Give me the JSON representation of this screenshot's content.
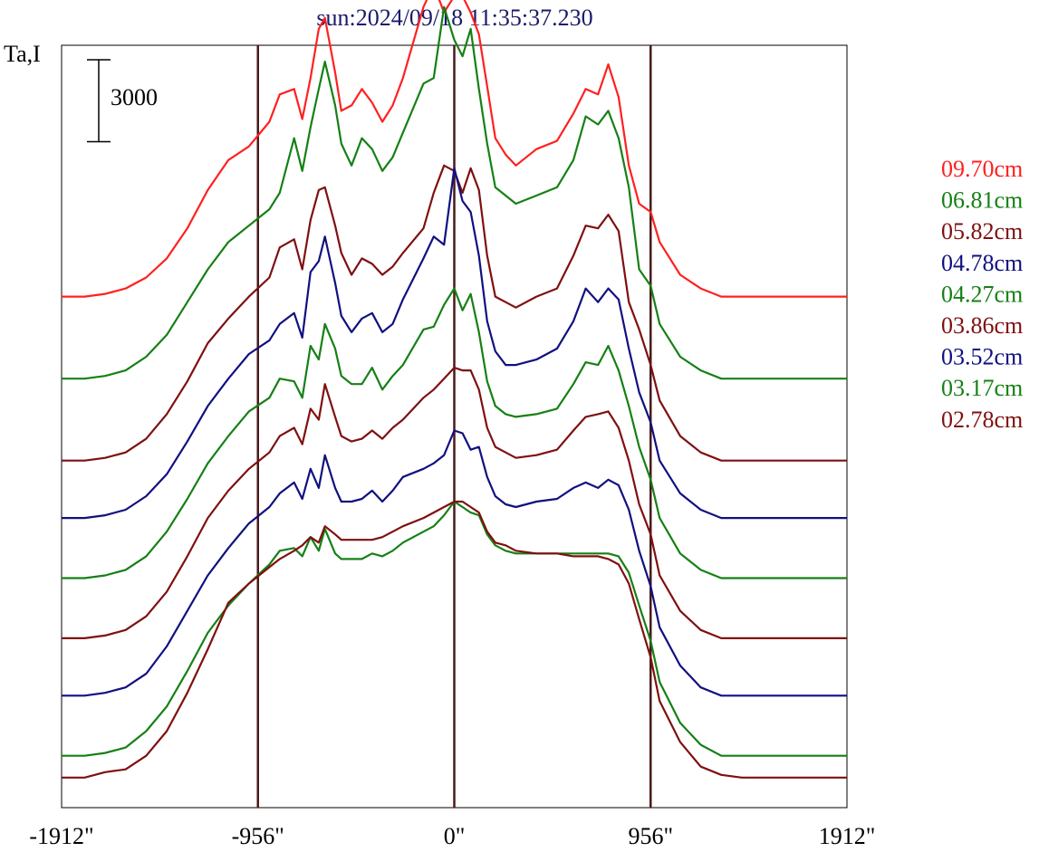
{
  "chart_data": {
    "type": "line",
    "title": "sun:2024/09/18 11:35:37.230",
    "ylabel": "Ta,I",
    "scale_bar_label": "3000",
    "scale_bar_value": 3000,
    "x_ticks": [
      {
        "value": -1912,
        "label": "-1912\""
      },
      {
        "value": -956,
        "label": "-956\""
      },
      {
        "value": 0,
        "label": "0\""
      },
      {
        "value": 956,
        "label": "956\""
      },
      {
        "value": 1912,
        "label": "1912\""
      }
    ],
    "xlim": [
      -1912,
      1912
    ],
    "ylim": [
      -1100,
      26800
    ],
    "reference_lines_x": [
      -956,
      0,
      956
    ],
    "grid": false,
    "legend_position": "right",
    "legend": [
      {
        "label": "09.70cm",
        "color": "#ff2020"
      },
      {
        "label": "06.81cm",
        "color": "#158015"
      },
      {
        "label": "05.82cm",
        "color": "#7f1010"
      },
      {
        "label": "04.78cm",
        "color": "#101080"
      },
      {
        "label": "04.27cm",
        "color": "#158015"
      },
      {
        "label": "03.86cm",
        "color": "#7f1010"
      },
      {
        "label": "03.52cm",
        "color": "#101080"
      },
      {
        "label": "03.17cm",
        "color": "#158015"
      },
      {
        "label": "02.78cm",
        "color": "#7f1010"
      }
    ],
    "series": [
      {
        "color": "#ff2020",
        "offset": 17600,
        "x": [
          -1912,
          -1800,
          -1700,
          -1600,
          -1500,
          -1400,
          -1300,
          -1200,
          -1100,
          -1000,
          -900,
          -850,
          -780,
          -740,
          -700,
          -660,
          -630,
          -580,
          -550,
          -500,
          -450,
          -400,
          -350,
          -300,
          -250,
          -150,
          -100,
          -50,
          0,
          40,
          80,
          120,
          160,
          200,
          250,
          300,
          400,
          500,
          580,
          640,
          700,
          750,
          800,
          850,
          900,
          956,
          1000,
          1100,
          1200,
          1300,
          1400,
          1500,
          1600,
          1700,
          1800,
          1912
        ],
        "y": [
          0,
          0,
          100,
          300,
          700,
          1400,
          2500,
          3900,
          5000,
          5500,
          6400,
          7400,
          7600,
          6500,
          8000,
          9800,
          10200,
          8200,
          6800,
          7000,
          7600,
          7100,
          6400,
          7000,
          8000,
          10600,
          11400,
          10400,
          11000,
          11000,
          10400,
          9600,
          7700,
          5800,
          5200,
          4800,
          5400,
          5700,
          6700,
          7600,
          7400,
          8500,
          7300,
          4800,
          3400,
          3100,
          2000,
          800,
          300,
          0,
          0,
          0,
          0,
          0,
          0,
          0
        ]
      },
      {
        "color": "#158015",
        "offset": 14600,
        "x": [
          -1912,
          -1800,
          -1700,
          -1600,
          -1500,
          -1400,
          -1300,
          -1200,
          -1100,
          -1000,
          -900,
          -850,
          -780,
          -740,
          -700,
          -660,
          -630,
          -580,
          -550,
          -500,
          -450,
          -400,
          -350,
          -300,
          -250,
          -150,
          -100,
          -50,
          0,
          40,
          80,
          120,
          160,
          200,
          250,
          300,
          400,
          500,
          580,
          640,
          700,
          750,
          800,
          850,
          900,
          956,
          1000,
          1100,
          1200,
          1300,
          1400,
          1500,
          1600,
          1700,
          1800,
          1912
        ],
        "y": [
          0,
          0,
          100,
          300,
          800,
          1600,
          2800,
          4000,
          5000,
          5600,
          6200,
          6800,
          8800,
          7600,
          9200,
          10600,
          11600,
          10000,
          8600,
          7800,
          8800,
          8400,
          7600,
          8100,
          9000,
          10800,
          11000,
          13600,
          12400,
          11800,
          12800,
          10600,
          8600,
          7000,
          6700,
          6400,
          6700,
          7000,
          8000,
          9600,
          9300,
          9800,
          8800,
          7000,
          4000,
          3400,
          2000,
          800,
          300,
          0,
          0,
          0,
          0,
          0,
          0,
          0
        ]
      },
      {
        "color": "#7f1010",
        "offset": 11600,
        "x": [
          -1912,
          -1800,
          -1700,
          -1600,
          -1500,
          -1400,
          -1300,
          -1200,
          -1100,
          -1000,
          -900,
          -850,
          -780,
          -740,
          -700,
          -660,
          -630,
          -580,
          -550,
          -500,
          -450,
          -400,
          -350,
          -300,
          -250,
          -150,
          -100,
          -50,
          0,
          40,
          80,
          120,
          160,
          200,
          250,
          300,
          400,
          500,
          580,
          640,
          700,
          750,
          800,
          850,
          900,
          956,
          1000,
          1100,
          1200,
          1300,
          1400,
          1500,
          1600,
          1700,
          1800,
          1912
        ],
        "y": [
          0,
          0,
          100,
          300,
          800,
          1700,
          2900,
          4300,
          5200,
          6000,
          6700,
          7800,
          8100,
          7000,
          8800,
          9900,
          10000,
          8600,
          7600,
          6800,
          7400,
          7200,
          6800,
          7100,
          7600,
          8500,
          9800,
          10800,
          10600,
          9800,
          10700,
          9900,
          7500,
          6000,
          5800,
          5600,
          6000,
          6300,
          7500,
          8600,
          8500,
          9000,
          8400,
          5800,
          4800,
          3500,
          2200,
          900,
          300,
          0,
          0,
          0,
          0,
          0,
          0,
          0
        ]
      },
      {
        "color": "#101080",
        "offset": 9500,
        "x": [
          -1912,
          -1800,
          -1700,
          -1600,
          -1500,
          -1400,
          -1300,
          -1200,
          -1100,
          -1000,
          -900,
          -850,
          -780,
          -740,
          -700,
          -660,
          -630,
          -580,
          -550,
          -500,
          -450,
          -400,
          -350,
          -300,
          -250,
          -150,
          -100,
          -50,
          0,
          40,
          80,
          120,
          160,
          200,
          250,
          300,
          400,
          500,
          580,
          640,
          700,
          750,
          800,
          850,
          900,
          956,
          1000,
          1100,
          1200,
          1300,
          1400,
          1500,
          1600,
          1700,
          1800,
          1912
        ],
        "y": [
          0,
          0,
          100,
          300,
          800,
          1600,
          2800,
          4100,
          5100,
          6000,
          6500,
          7100,
          7500,
          6600,
          9000,
          9400,
          10300,
          8600,
          7400,
          6800,
          7300,
          7500,
          6800,
          7100,
          8000,
          9500,
          10300,
          10000,
          12800,
          11600,
          11200,
          9600,
          7200,
          6100,
          5600,
          5600,
          5800,
          6200,
          7200,
          8400,
          7900,
          8400,
          8000,
          6200,
          4600,
          3500,
          2100,
          900,
          300,
          0,
          0,
          0,
          0,
          0,
          0,
          0
        ]
      },
      {
        "color": "#158015",
        "offset": 7300,
        "x": [
          -1912,
          -1800,
          -1700,
          -1600,
          -1500,
          -1400,
          -1300,
          -1200,
          -1100,
          -1000,
          -900,
          -850,
          -780,
          -740,
          -700,
          -660,
          -630,
          -580,
          -550,
          -500,
          -450,
          -400,
          -350,
          -300,
          -250,
          -150,
          -100,
          -50,
          0,
          40,
          80,
          120,
          160,
          200,
          250,
          300,
          400,
          500,
          580,
          640,
          700,
          750,
          800,
          850,
          900,
          956,
          1000,
          1100,
          1200,
          1300,
          1400,
          1500,
          1600,
          1700,
          1800,
          1912
        ],
        "y": [
          0,
          0,
          100,
          300,
          800,
          1700,
          2900,
          4200,
          5200,
          6100,
          6600,
          7300,
          7200,
          6600,
          8500,
          8000,
          9300,
          8400,
          7400,
          7100,
          7100,
          7700,
          6900,
          7400,
          7800,
          9100,
          9200,
          10000,
          10600,
          9800,
          10400,
          9000,
          7200,
          6300,
          6000,
          5900,
          6000,
          6200,
          7100,
          7900,
          7800,
          8500,
          7600,
          6300,
          4800,
          3600,
          2200,
          900,
          300,
          0,
          0,
          0,
          0,
          0,
          0,
          0
        ]
      },
      {
        "color": "#7f1010",
        "offset": 5100,
        "x": [
          -1912,
          -1800,
          -1700,
          -1600,
          -1500,
          -1400,
          -1300,
          -1200,
          -1100,
          -1000,
          -900,
          -850,
          -780,
          -740,
          -700,
          -660,
          -630,
          -580,
          -550,
          -500,
          -450,
          -400,
          -350,
          -300,
          -250,
          -150,
          -100,
          -50,
          0,
          40,
          80,
          120,
          160,
          200,
          250,
          300,
          400,
          500,
          580,
          640,
          700,
          750,
          800,
          850,
          900,
          956,
          1000,
          1100,
          1200,
          1300,
          1400,
          1500,
          1600,
          1700,
          1800,
          1912
        ],
        "y": [
          0,
          0,
          100,
          300,
          800,
          1700,
          3000,
          4400,
          5400,
          6200,
          6800,
          7400,
          7700,
          7100,
          8400,
          8000,
          9300,
          8100,
          7400,
          7200,
          7300,
          7600,
          7300,
          7700,
          8000,
          8800,
          9100,
          9500,
          9900,
          9800,
          9800,
          9100,
          7700,
          7000,
          6800,
          6600,
          6700,
          6900,
          7600,
          8100,
          8200,
          8300,
          7700,
          6500,
          4900,
          3800,
          2300,
          1000,
          300,
          0,
          0,
          0,
          0,
          0,
          0,
          0
        ]
      },
      {
        "color": "#101080",
        "offset": 3000,
        "x": [
          -1912,
          -1800,
          -1700,
          -1600,
          -1500,
          -1400,
          -1300,
          -1200,
          -1100,
          -1000,
          -900,
          -850,
          -780,
          -740,
          -700,
          -660,
          -630,
          -580,
          -550,
          -500,
          -450,
          -400,
          -350,
          -300,
          -250,
          -150,
          -100,
          -50,
          0,
          40,
          80,
          120,
          160,
          200,
          250,
          300,
          400,
          500,
          580,
          640,
          700,
          750,
          800,
          850,
          900,
          956,
          1000,
          1100,
          1200,
          1300,
          1400,
          1500,
          1600,
          1700,
          1800,
          1912
        ],
        "y": [
          0,
          0,
          100,
          300,
          800,
          1800,
          3100,
          4400,
          5400,
          6300,
          6900,
          7400,
          7800,
          7200,
          8300,
          7600,
          8800,
          7600,
          7100,
          7100,
          7200,
          7500,
          7100,
          7500,
          8000,
          8300,
          8500,
          8800,
          9700,
          9600,
          9000,
          9100,
          8000,
          7300,
          7000,
          6900,
          7100,
          7200,
          7600,
          7800,
          7600,
          7900,
          7700,
          6800,
          5300,
          4000,
          2500,
          1100,
          300,
          0,
          0,
          0,
          0,
          0,
          0,
          0
        ]
      },
      {
        "color": "#158015",
        "offset": 800,
        "x": [
          -1912,
          -1800,
          -1700,
          -1600,
          -1500,
          -1400,
          -1300,
          -1200,
          -1100,
          -1000,
          -900,
          -850,
          -780,
          -740,
          -700,
          -660,
          -630,
          -580,
          -550,
          -500,
          -450,
          -400,
          -350,
          -300,
          -250,
          -150,
          -100,
          -50,
          0,
          40,
          80,
          120,
          160,
          200,
          250,
          300,
          400,
          500,
          580,
          640,
          700,
          750,
          800,
          850,
          900,
          956,
          1000,
          1100,
          1200,
          1300,
          1400,
          1500,
          1600,
          1700,
          1800,
          1912
        ],
        "y": [
          0,
          0,
          100,
          300,
          900,
          1800,
          3100,
          4500,
          5500,
          6300,
          7000,
          7500,
          7600,
          7300,
          8000,
          7500,
          8300,
          7400,
          7200,
          7200,
          7200,
          7400,
          7300,
          7500,
          7800,
          8200,
          8400,
          8800,
          9300,
          9100,
          8900,
          8800,
          8100,
          7700,
          7500,
          7400,
          7400,
          7400,
          7400,
          7400,
          7400,
          7400,
          7300,
          6700,
          5500,
          4200,
          2700,
          1200,
          400,
          0,
          0,
          0,
          0,
          0,
          0,
          0
        ]
      },
      {
        "color": "#7f1010",
        "offset": 0,
        "x": [
          -1912,
          -1800,
          -1700,
          -1600,
          -1500,
          -1400,
          -1300,
          -1200,
          -1100,
          -1000,
          -900,
          -850,
          -780,
          -740,
          -700,
          -660,
          -630,
          -580,
          -550,
          -500,
          -450,
          -400,
          -350,
          -300,
          -250,
          -150,
          -100,
          -50,
          0,
          40,
          80,
          120,
          160,
          200,
          250,
          300,
          400,
          500,
          580,
          640,
          700,
          750,
          800,
          850,
          900,
          956,
          1000,
          1100,
          1200,
          1300,
          1400,
          1500,
          1600,
          1700,
          1800,
          1912
        ],
        "y": [
          0,
          0,
          200,
          300,
          800,
          1700,
          3100,
          4700,
          6400,
          7100,
          7700,
          8000,
          8300,
          8500,
          8800,
          8600,
          9200,
          8900,
          8700,
          8700,
          8700,
          8700,
          8800,
          9000,
          9200,
          9500,
          9700,
          9900,
          10100,
          10100,
          9900,
          9700,
          9000,
          8600,
          8500,
          8300,
          8200,
          8200,
          8100,
          8100,
          8100,
          8000,
          7800,
          7100,
          5800,
          4400,
          2800,
          1300,
          400,
          100,
          0,
          0,
          0,
          0,
          0,
          0
        ]
      }
    ]
  }
}
